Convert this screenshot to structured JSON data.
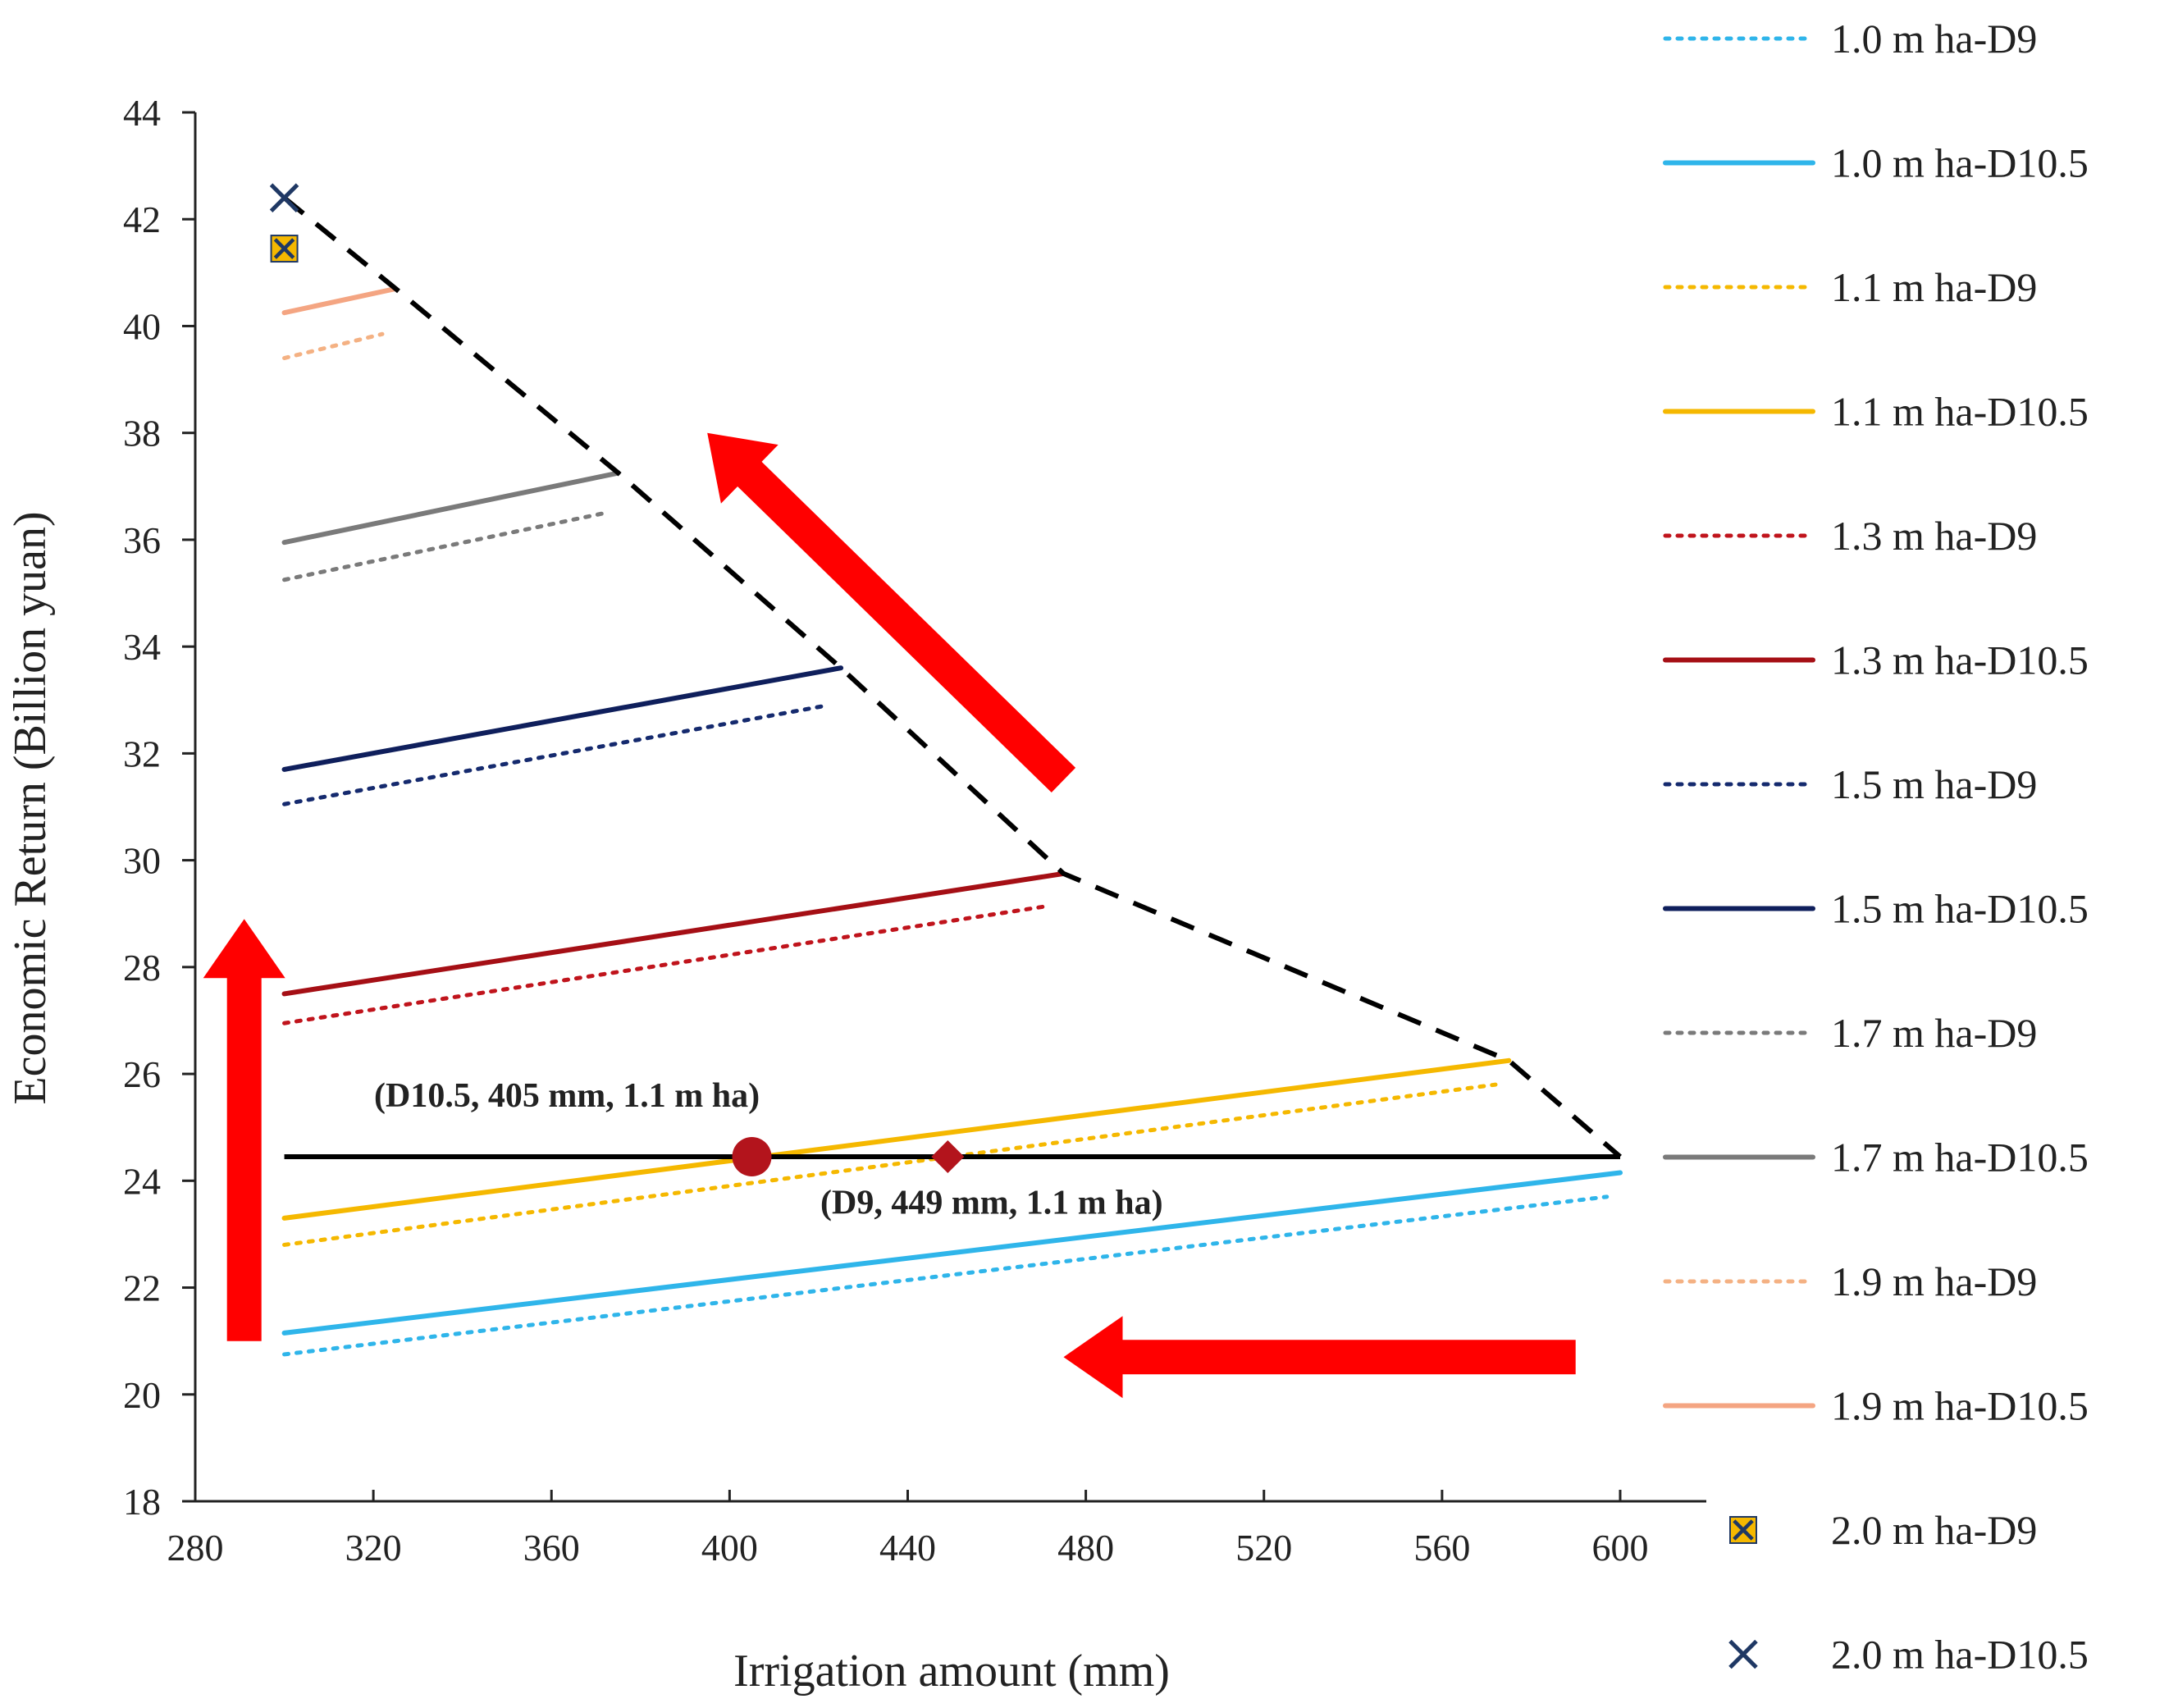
{
  "chart_data": {
    "type": "line",
    "title": "",
    "xlabel": "Irrigation amount (mm)",
    "ylabel": "Economic Return (Billion yuan)",
    "xlim": [
      280,
      620
    ],
    "ylim": [
      18,
      44
    ],
    "xticks": [
      280,
      320,
      360,
      400,
      440,
      480,
      520,
      560,
      600
    ],
    "yticks": [
      18,
      20,
      22,
      24,
      26,
      28,
      30,
      32,
      34,
      36,
      38,
      40,
      42,
      44
    ],
    "grid": false,
    "legend_position": "right",
    "series": [
      {
        "name": "1.0 m ha-D9",
        "color": "#2fb5ea",
        "style": "dotted",
        "points": [
          [
            300,
            20.75
          ],
          [
            597,
            23.7
          ]
        ]
      },
      {
        "name": "1.0 m ha-D10.5",
        "color": "#2fb5ea",
        "style": "solid",
        "points": [
          [
            300,
            21.15
          ],
          [
            600,
            24.15
          ]
        ]
      },
      {
        "name": "1.1 m ha-D9",
        "color": "#f5b800",
        "style": "dotted",
        "points": [
          [
            300,
            22.8
          ],
          [
            572,
            25.8
          ]
        ]
      },
      {
        "name": "1.1 m ha-D10.5",
        "color": "#f5b800",
        "style": "solid",
        "points": [
          [
            300,
            23.3
          ],
          [
            575,
            26.25
          ]
        ]
      },
      {
        "name": "1.3 m ha-D9",
        "color": "#c0141c",
        "style": "dotted",
        "points": [
          [
            300,
            26.95
          ],
          [
            472,
            29.15
          ]
        ]
      },
      {
        "name": "1.3 m ha-D10.5",
        "color": "#a50f15",
        "style": "solid",
        "points": [
          [
            300,
            27.5
          ],
          [
            475,
            29.75
          ]
        ]
      },
      {
        "name": "1.5 m ha-D9",
        "color": "#152a6e",
        "style": "dotted",
        "points": [
          [
            300,
            31.05
          ],
          [
            422,
            32.9
          ]
        ]
      },
      {
        "name": "1.5 m ha-D10.5",
        "color": "#0f1f5c",
        "style": "solid",
        "points": [
          [
            300,
            31.7
          ],
          [
            425,
            33.6
          ]
        ]
      },
      {
        "name": "1.7 m ha-D9",
        "color": "#7a7a7a",
        "style": "dotted",
        "points": [
          [
            300,
            35.25
          ],
          [
            372,
            36.5
          ]
        ]
      },
      {
        "name": "1.7 m ha-D10.5",
        "color": "#7a7a7a",
        "style": "solid",
        "points": [
          [
            300,
            35.95
          ],
          [
            375,
            37.25
          ]
        ]
      },
      {
        "name": "1.9 m ha-D9",
        "color": "#f4b183",
        "style": "dotted",
        "points": [
          [
            300,
            39.4
          ],
          [
            322,
            39.85
          ]
        ]
      },
      {
        "name": "1.9 m ha-D10.5",
        "color": "#f4a582",
        "style": "solid",
        "points": [
          [
            300,
            40.25
          ],
          [
            325,
            40.7
          ]
        ]
      },
      {
        "name": "2.0 m ha-D9",
        "color": "#f5b800",
        "style": "marker-square-x",
        "points": [
          [
            300,
            41.45
          ]
        ]
      },
      {
        "name": "2.0 m ha-D10.5",
        "color": "#1f3864",
        "style": "marker-x",
        "points": [
          [
            300,
            42.4
          ]
        ]
      }
    ],
    "envelope": {
      "color": "#000000",
      "style": "dashed",
      "points": [
        [
          300,
          42.4
        ],
        [
          325,
          40.7
        ],
        [
          375,
          37.25
        ],
        [
          425,
          33.6
        ],
        [
          475,
          29.75
        ],
        [
          575,
          26.25
        ],
        [
          600,
          24.45
        ]
      ]
    },
    "threshold": {
      "y": 24.45,
      "x_range": [
        300,
        600
      ],
      "color": "#000000"
    },
    "highlight_points": [
      {
        "x": 405,
        "y": 24.45,
        "shape": "circle",
        "color": "#b3141c",
        "label": "(D10.5, 405 mm, 1.1 m ha)"
      },
      {
        "x": 449,
        "y": 24.45,
        "shape": "diamond",
        "color": "#b3141c",
        "label": "(D9, 449 mm, 1.1 m ha)"
      }
    ],
    "arrows": [
      {
        "direction": "up",
        "from": [
          291,
          21.0
        ],
        "to": [
          291,
          28.9
        ],
        "color": "#ff0000"
      },
      {
        "direction": "left",
        "from": [
          590,
          20.7
        ],
        "to": [
          475,
          20.7
        ],
        "color": "#ff0000"
      },
      {
        "direction": "up-left",
        "from": [
          475,
          31.5
        ],
        "to": [
          395,
          38.0
        ],
        "color": "#ff0000"
      }
    ]
  }
}
